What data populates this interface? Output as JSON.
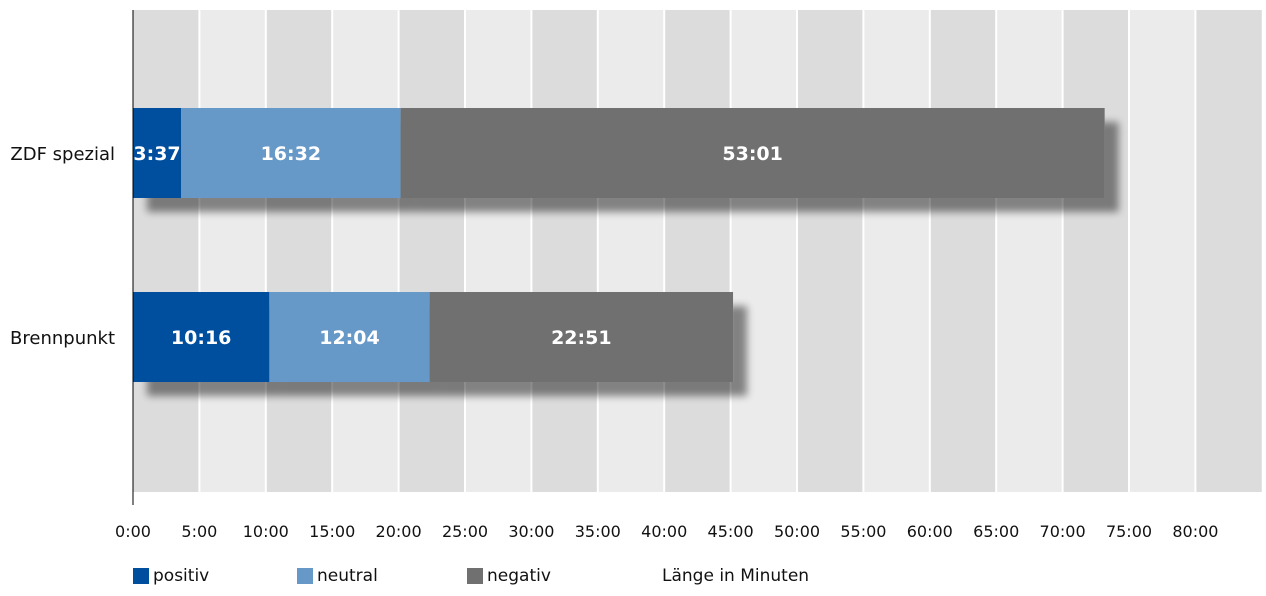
{
  "chart_data": {
    "type": "bar",
    "orientation": "horizontal",
    "stacked": true,
    "categories": [
      "ZDF spezial",
      "Brennpunkt"
    ],
    "series": [
      {
        "name": "positiv",
        "color": "#004f9e",
        "values": [
          3.617,
          10.267
        ],
        "labels": [
          "3:37",
          "10:16"
        ]
      },
      {
        "name": "neutral",
        "color": "#6699c8",
        "values": [
          16.533,
          12.067
        ],
        "labels": [
          "16:32",
          "12:04"
        ]
      },
      {
        "name": "negativ",
        "color": "#707070",
        "values": [
          53.017,
          22.85
        ],
        "labels": [
          "53:01",
          "22:51"
        ]
      }
    ],
    "x_ticks": [
      "0:00",
      "5:00",
      "10:00",
      "15:00",
      "20:00",
      "25:00",
      "30:00",
      "35:00",
      "40:00",
      "45:00",
      "50:00",
      "55:00",
      "60:00",
      "65:00",
      "70:00",
      "75:00",
      "80:00"
    ],
    "xlim": [
      0,
      85
    ],
    "xlabel": "Länge in Minuten",
    "legend_position": "bottom",
    "background_bands": [
      "#dcdcdc",
      "#ebebeb"
    ]
  }
}
